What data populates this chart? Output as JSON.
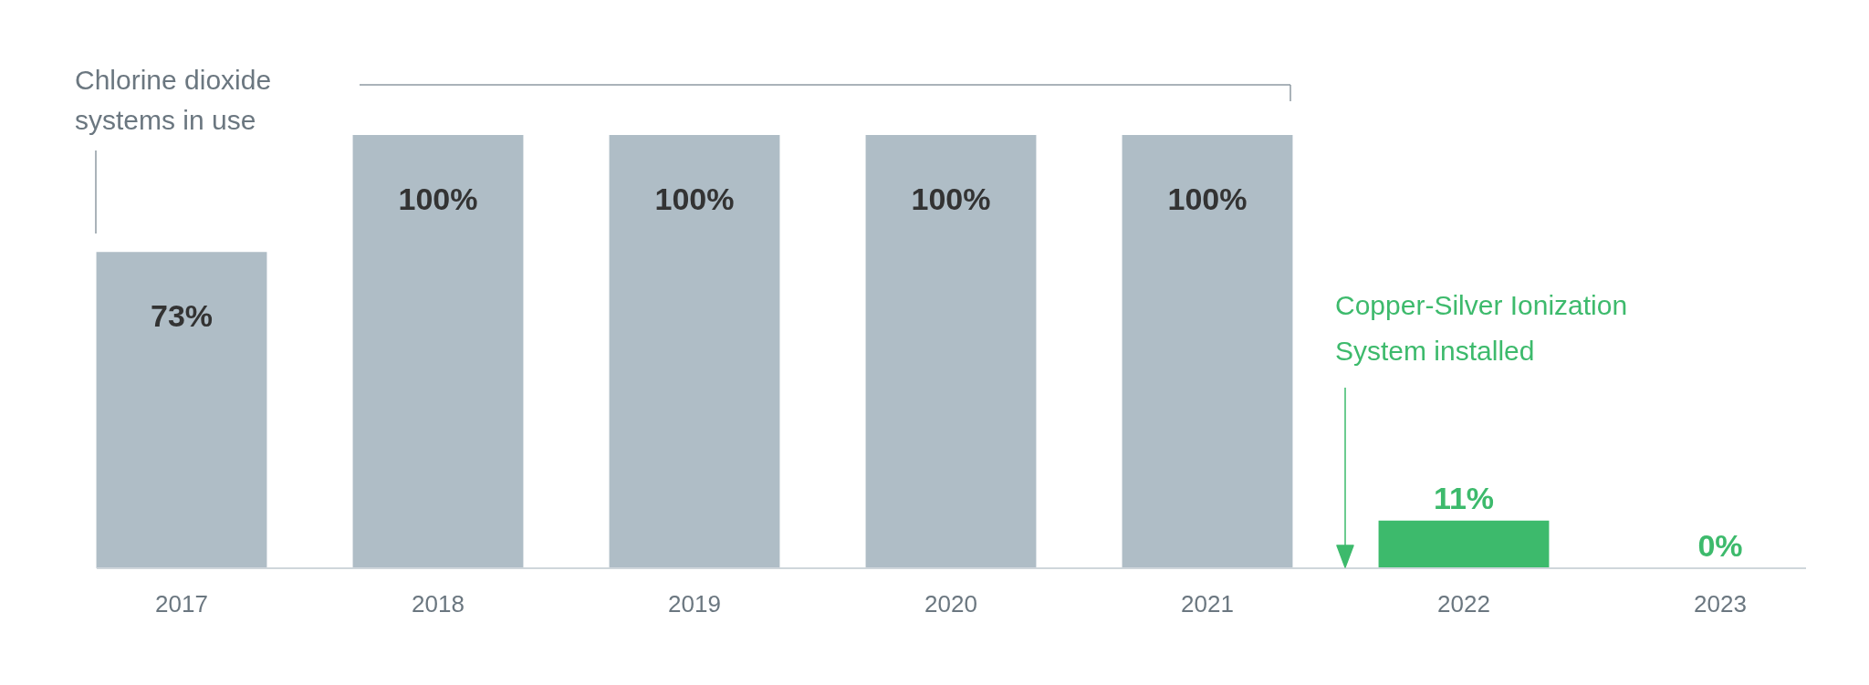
{
  "chart_data": {
    "type": "bar",
    "categories": [
      "2017",
      "2018",
      "2019",
      "2020",
      "2021",
      "2022",
      "2023"
    ],
    "values": [
      73,
      100,
      100,
      100,
      100,
      11,
      0
    ],
    "colors": [
      "#afbdc6",
      "#afbdc6",
      "#afbdc6",
      "#afbdc6",
      "#afbdc6",
      "#3dba6c",
      "#3dba6c"
    ],
    "value_labels": [
      "73%",
      "100%",
      "100%",
      "100%",
      "100%",
      "11%",
      "0%"
    ],
    "annotations": [
      "Chlorine dioxide systems in use",
      "Copper-Silver Ionization System installed"
    ],
    "grid": false
  }
}
